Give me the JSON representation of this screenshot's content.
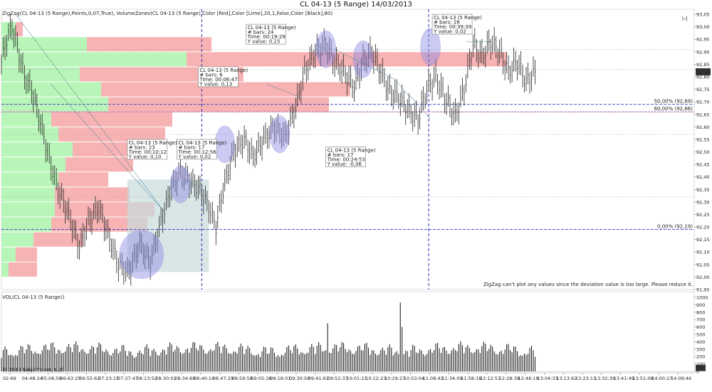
{
  "window": {
    "title": "CL 04-13 (5 Range)  14/03/2013",
    "close_glyph": "▷|"
  },
  "indicator_header": "ZigZag(CL 04-13 (5 Range),Points,0,07,True), VolumeZones(CL 04-13 (5 Range),Color [Red],Color [Lime],20,1,False,Color [Black],80)",
  "zigzag_warning": "ZigZag can't plot any values since the deviation value is too large. Please reduce it.",
  "volume_label": "VOL(CL 04-13 (5 Range))",
  "copyright": "© 2013 NinjaTrader, LLC",
  "current_price_tag": "92,86",
  "current_volume_tag": "32",
  "fib_labels": {
    "fib50": "50,00% (92,69)",
    "fib60": "60,00% (92,66)",
    "fib0": "0,00% (92,19)"
  },
  "colors": {
    "buy_zone": "#b8f5b8",
    "sell_zone": "#f7b3b3",
    "ellipse": "#8c8ce6",
    "box": "#c8dcdc",
    "fib_line": "#3a3acc",
    "fib60_line": "#a0408c"
  },
  "chart_data": {
    "type": "bar",
    "title": "CL 04-13 (5 Range)  14/03/2013",
    "price_axis": {
      "ylim": [
        91.95,
        93.07
      ],
      "ticks": [
        "93,05",
        "93,00",
        "92,95",
        "92,90",
        "92,85",
        "92,80",
        "92,75",
        "92,70",
        "92,65",
        "92,60",
        "92,55",
        "92,50",
        "92,45",
        "92,40",
        "92,35",
        "92,30",
        "92,25",
        "92,20",
        "92,15",
        "92,10",
        "92,05",
        "92,00",
        "91,95"
      ]
    },
    "volume_axis": {
      "ylim": [
        0,
        1000
      ],
      "ticks": [
        "1000",
        "900",
        "800",
        "700",
        "600",
        "500",
        "400",
        "300",
        "200",
        "100",
        "0"
      ]
    },
    "time_labels": [
      "02:69",
      "04:48:24",
      "05:06:56",
      "06:63:25",
      "06:55:63",
      "07:23:15",
      "07:37:47",
      "08:13:52",
      "08:30:01",
      "08:34:69",
      "08:40:14",
      "08:47:29",
      "08:59:58",
      "09:05:36",
      "09:18:01",
      "09:30:50",
      "09:41:61",
      "09:52:37",
      "10:01:21",
      "10:12:23",
      "10:29:27",
      "10:53:04",
      "11:08:42",
      "11:34:09",
      "11:58:18",
      "12:12:51",
      "12:28:38",
      "12:46:18",
      "13:04:33",
      "13:13:62",
      "13:23:11",
      "13:32:30",
      "13:41:49",
      "13:51:08",
      "14:00:27",
      "14:09:46"
    ],
    "price_path": [
      [
        0,
        92.86
      ],
      [
        3,
        92.95
      ],
      [
        6,
        93.0
      ],
      [
        9,
        92.92
      ],
      [
        13,
        92.8
      ],
      [
        17,
        92.75
      ],
      [
        22,
        92.62
      ],
      [
        27,
        92.47
      ],
      [
        32,
        92.35
      ],
      [
        38,
        92.25
      ],
      [
        44,
        92.12
      ],
      [
        49,
        92.22
      ],
      [
        55,
        92.28
      ],
      [
        61,
        92.15
      ],
      [
        66,
        92.05
      ],
      [
        72,
        92.02
      ],
      [
        78,
        92.13
      ],
      [
        84,
        92.06
      ],
      [
        90,
        92.22
      ],
      [
        96,
        92.36
      ],
      [
        101,
        92.42
      ],
      [
        107,
        92.38
      ],
      [
        112,
        92.35
      ],
      [
        117,
        92.28
      ],
      [
        121,
        92.2
      ],
      [
        125,
        92.35
      ],
      [
        131,
        92.5
      ],
      [
        137,
        92.55
      ],
      [
        142,
        92.48
      ],
      [
        148,
        92.55
      ],
      [
        154,
        92.6
      ],
      [
        160,
        92.56
      ],
      [
        166,
        92.68
      ],
      [
        171,
        92.82
      ],
      [
        177,
        92.9
      ],
      [
        183,
        92.93
      ],
      [
        188,
        92.86
      ],
      [
        193,
        92.82
      ],
      [
        199,
        92.76
      ],
      [
        204,
        92.86
      ],
      [
        209,
        92.9
      ],
      [
        214,
        92.82
      ],
      [
        219,
        92.74
      ],
      [
        224,
        92.72
      ],
      [
        230,
        92.66
      ],
      [
        235,
        92.63
      ],
      [
        240,
        92.75
      ],
      [
        245,
        92.8
      ],
      [
        250,
        92.72
      ],
      [
        256,
        92.64
      ],
      [
        261,
        92.75
      ],
      [
        266,
        92.93
      ],
      [
        271,
        92.88
      ],
      [
        276,
        92.94
      ],
      [
        281,
        92.9
      ],
      [
        286,
        92.82
      ],
      [
        291,
        92.86
      ],
      [
        296,
        92.78
      ],
      [
        301,
        92.82
      ]
    ],
    "volume_zones": [
      {
        "price": 92.99,
        "buy": 20,
        "sell": 10
      },
      {
        "price": 92.93,
        "buy": 120,
        "sell": 175
      },
      {
        "price": 92.87,
        "buy": 260,
        "sell": 450
      },
      {
        "price": 92.81,
        "buy": 110,
        "sell": 230
      },
      {
        "price": 92.75,
        "buy": 140,
        "sell": 350
      },
      {
        "price": 92.69,
        "buy": 150,
        "sell": 310
      },
      {
        "price": 92.63,
        "buy": 70,
        "sell": 170
      },
      {
        "price": 92.57,
        "buy": 80,
        "sell": 150
      },
      {
        "price": 92.51,
        "buy": 100,
        "sell": 110
      },
      {
        "price": 92.45,
        "buy": 90,
        "sell": 95
      },
      {
        "price": 92.39,
        "buy": 80,
        "sell": 70
      },
      {
        "price": 92.33,
        "buy": 75,
        "sell": 105
      },
      {
        "price": 92.27,
        "buy": 75,
        "sell": 140
      },
      {
        "price": 92.21,
        "buy": 70,
        "sell": 135
      },
      {
        "price": 92.15,
        "buy": 45,
        "sell": 70
      },
      {
        "price": 92.09,
        "buy": 20,
        "sell": 30
      },
      {
        "price": 92.03,
        "buy": 10,
        "sell": 40
      }
    ],
    "fib_levels": [
      {
        "label": "50,00% (92,69)",
        "price": 92.69
      },
      {
        "label": "60,00% (92,66)",
        "price": 92.66
      },
      {
        "label": "0,00% (92,19)",
        "price": 92.19
      }
    ],
    "horizontal_lines": [
      92.91,
      92.83,
      92.57,
      92.32
    ],
    "ellipses": [
      {
        "bar": 79,
        "price": 92.09
      },
      {
        "bar": 101,
        "price": 92.37
      },
      {
        "bar": 126,
        "price": 92.53
      },
      {
        "bar": 157,
        "price": 92.57
      },
      {
        "bar": 183,
        "price": 92.91
      },
      {
        "bar": 204,
        "price": 92.87
      },
      {
        "bar": 242,
        "price": 92.92
      }
    ],
    "rectangle": {
      "bar_from": 71,
      "bar_to": 117,
      "price_from": 92.02,
      "price_to": 92.39
    },
    "vertical_lines_bar": [
      113,
      241
    ],
    "last_bar": 301,
    "zigzag_segments": [
      [
        [
          8,
          93.05
        ],
        [
          92,
          92.26
        ]
      ],
      [
        [
          28,
          92.77
        ],
        [
          92,
          92.26
        ]
      ],
      [
        [
          150,
          92.77
        ],
        [
          168,
          92.72
        ]
      ],
      [
        [
          188,
          92.91
        ],
        [
          222,
          92.79
        ]
      ],
      [
        [
          222,
          92.79
        ],
        [
          229,
          92.73
        ]
      ],
      [
        [
          229,
          92.73
        ],
        [
          234,
          92.7
        ]
      ],
      [
        [
          234,
          92.7
        ],
        [
          242,
          92.63
        ]
      ],
      [
        [
          276,
          92.94
        ],
        [
          262,
          92.94
        ]
      ]
    ],
    "measurements": [
      {
        "id": "m1",
        "lines": [
          "CL 04-13 (5 Range)",
          "# bars:   23",
          "Time:     00:10:12",
          "Y value: 0,10"
        ],
        "anchor_bar": 71,
        "anchor_price": 92.55
      },
      {
        "id": "m2",
        "lines": [
          "CL 04-13 (5 Range)",
          "# bars:   17",
          "Time:     00:12:56",
          "Y value: 0,02"
        ],
        "anchor_bar": 99,
        "anchor_price": 92.55
      },
      {
        "id": "m3",
        "lines": [
          "CL 04-13 (5 Range)",
          "# bars:   6",
          "Time:     00:06:47",
          "Y value: 0,13"
        ],
        "anchor_bar": 111,
        "anchor_price": 92.84
      },
      {
        "id": "m4",
        "lines": [
          "CL 04-13 (5 Range)",
          "# bars:   24",
          "Time:     00:19:29",
          "Y value: 0,15"
        ],
        "anchor_bar": 138,
        "anchor_price": 93.01
      },
      {
        "id": "m5",
        "lines": [
          "CL 04-13 (5 Range)",
          "# bars:   17",
          "Time:     00:24:53",
          "Y value: -0,06"
        ],
        "anchor_bar": 183,
        "anchor_price": 92.52
      },
      {
        "id": "m6",
        "lines": [
          "CL 04-13 (5 Range)",
          "# bars:   26",
          "Time:     00:39:39",
          "Y value: 0,02"
        ],
        "anchor_bar": 243,
        "anchor_price": 93.05
      }
    ]
  }
}
